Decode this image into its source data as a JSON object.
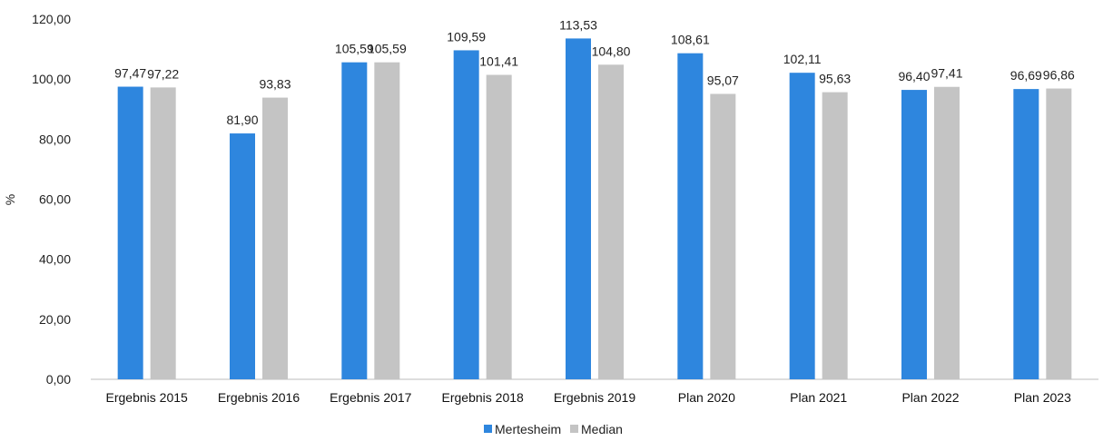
{
  "chart_data": {
    "type": "bar",
    "ylabel": "%",
    "ylim": [
      0,
      120
    ],
    "yticks": [
      "0,00",
      "20,00",
      "40,00",
      "60,00",
      "80,00",
      "100,00",
      "120,00"
    ],
    "categories": [
      "Ergebnis 2015",
      "Ergebnis 2016",
      "Ergebnis 2017",
      "Ergebnis 2018",
      "Ergebnis 2019",
      "Plan 2020",
      "Plan 2021",
      "Plan 2022",
      "Plan 2023"
    ],
    "series": [
      {
        "name": "Mertesheim",
        "color": "#2E86DE",
        "values": [
          97.47,
          81.9,
          105.59,
          109.59,
          113.53,
          108.61,
          102.11,
          96.4,
          96.69
        ],
        "labels": [
          "97,47",
          "81,90",
          "105,59",
          "109,59",
          "113,53",
          "108,61",
          "102,11",
          "96,40",
          "96,69"
        ]
      },
      {
        "name": "Median",
        "color": "#C4C4C4",
        "values": [
          97.22,
          93.83,
          105.59,
          101.41,
          104.8,
          95.07,
          95.63,
          97.41,
          96.86
        ],
        "labels": [
          "97,22",
          "93,83",
          "105,59",
          "101,41",
          "104,80",
          "95,07",
          "95,63",
          "97,41",
          "96,86"
        ]
      }
    ],
    "grid": false,
    "legend_position": "bottom"
  }
}
